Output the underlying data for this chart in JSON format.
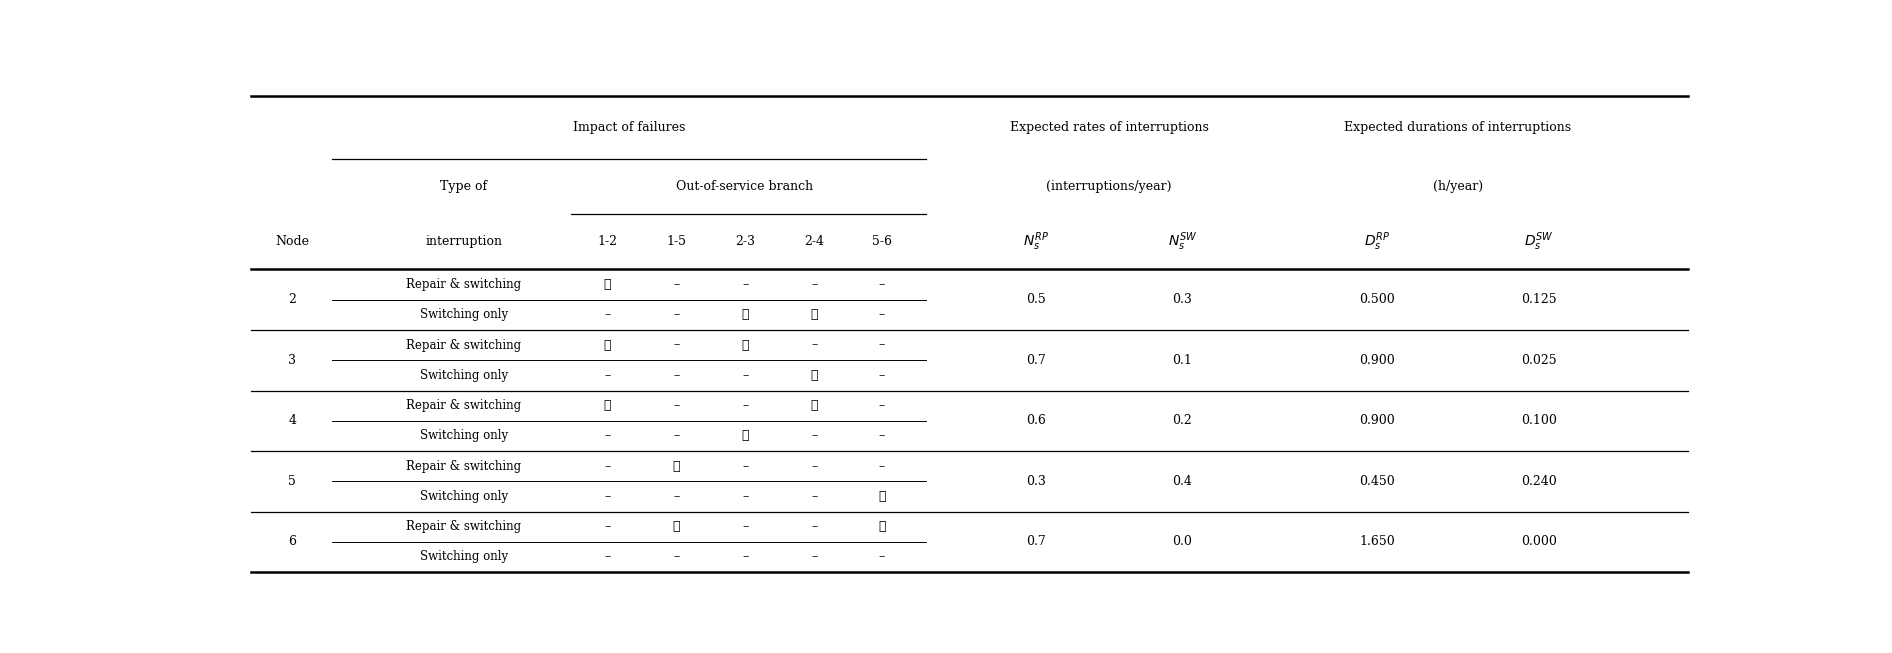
{
  "figsize": [
    18.92,
    6.53
  ],
  "dpi": 100,
  "nodes": [
    "2",
    "3",
    "4",
    "5",
    "6"
  ],
  "node_rows": {
    "2": {
      "repair": [
        "✓",
        "–",
        "–",
        "–",
        "–"
      ],
      "switching": [
        "–",
        "–",
        "✓",
        "✓",
        "–"
      ],
      "N_RP": "0.5",
      "N_SW": "0.3",
      "D_RP": "0.500",
      "D_SW": "0.125"
    },
    "3": {
      "repair": [
        "✓",
        "–",
        "✓",
        "–",
        "–"
      ],
      "switching": [
        "–",
        "–",
        "–",
        "✓",
        "–"
      ],
      "N_RP": "0.7",
      "N_SW": "0.1",
      "D_RP": "0.900",
      "D_SW": "0.025"
    },
    "4": {
      "repair": [
        "✓",
        "–",
        "–",
        "✓",
        "–"
      ],
      "switching": [
        "–",
        "–",
        "✓",
        "–",
        "–"
      ],
      "N_RP": "0.6",
      "N_SW": "0.2",
      "D_RP": "0.900",
      "D_SW": "0.100"
    },
    "5": {
      "repair": [
        "–",
        "✓",
        "–",
        "–",
        "–"
      ],
      "switching": [
        "–",
        "–",
        "–",
        "–",
        "✓"
      ],
      "N_RP": "0.3",
      "N_SW": "0.4",
      "D_RP": "0.450",
      "D_SW": "0.240"
    },
    "6": {
      "repair": [
        "–",
        "✓",
        "–",
        "–",
        "✓"
      ],
      "switching": [
        "–",
        "–",
        "–",
        "–",
        "–"
      ],
      "N_RP": "0.7",
      "N_SW": "0.0",
      "D_RP": "1.650",
      "D_SW": "0.000"
    }
  },
  "branch_cols": [
    "1-2",
    "1-5",
    "2-3",
    "2-4",
    "5-6"
  ],
  "background_color": "#ffffff",
  "text_color": "#000000"
}
